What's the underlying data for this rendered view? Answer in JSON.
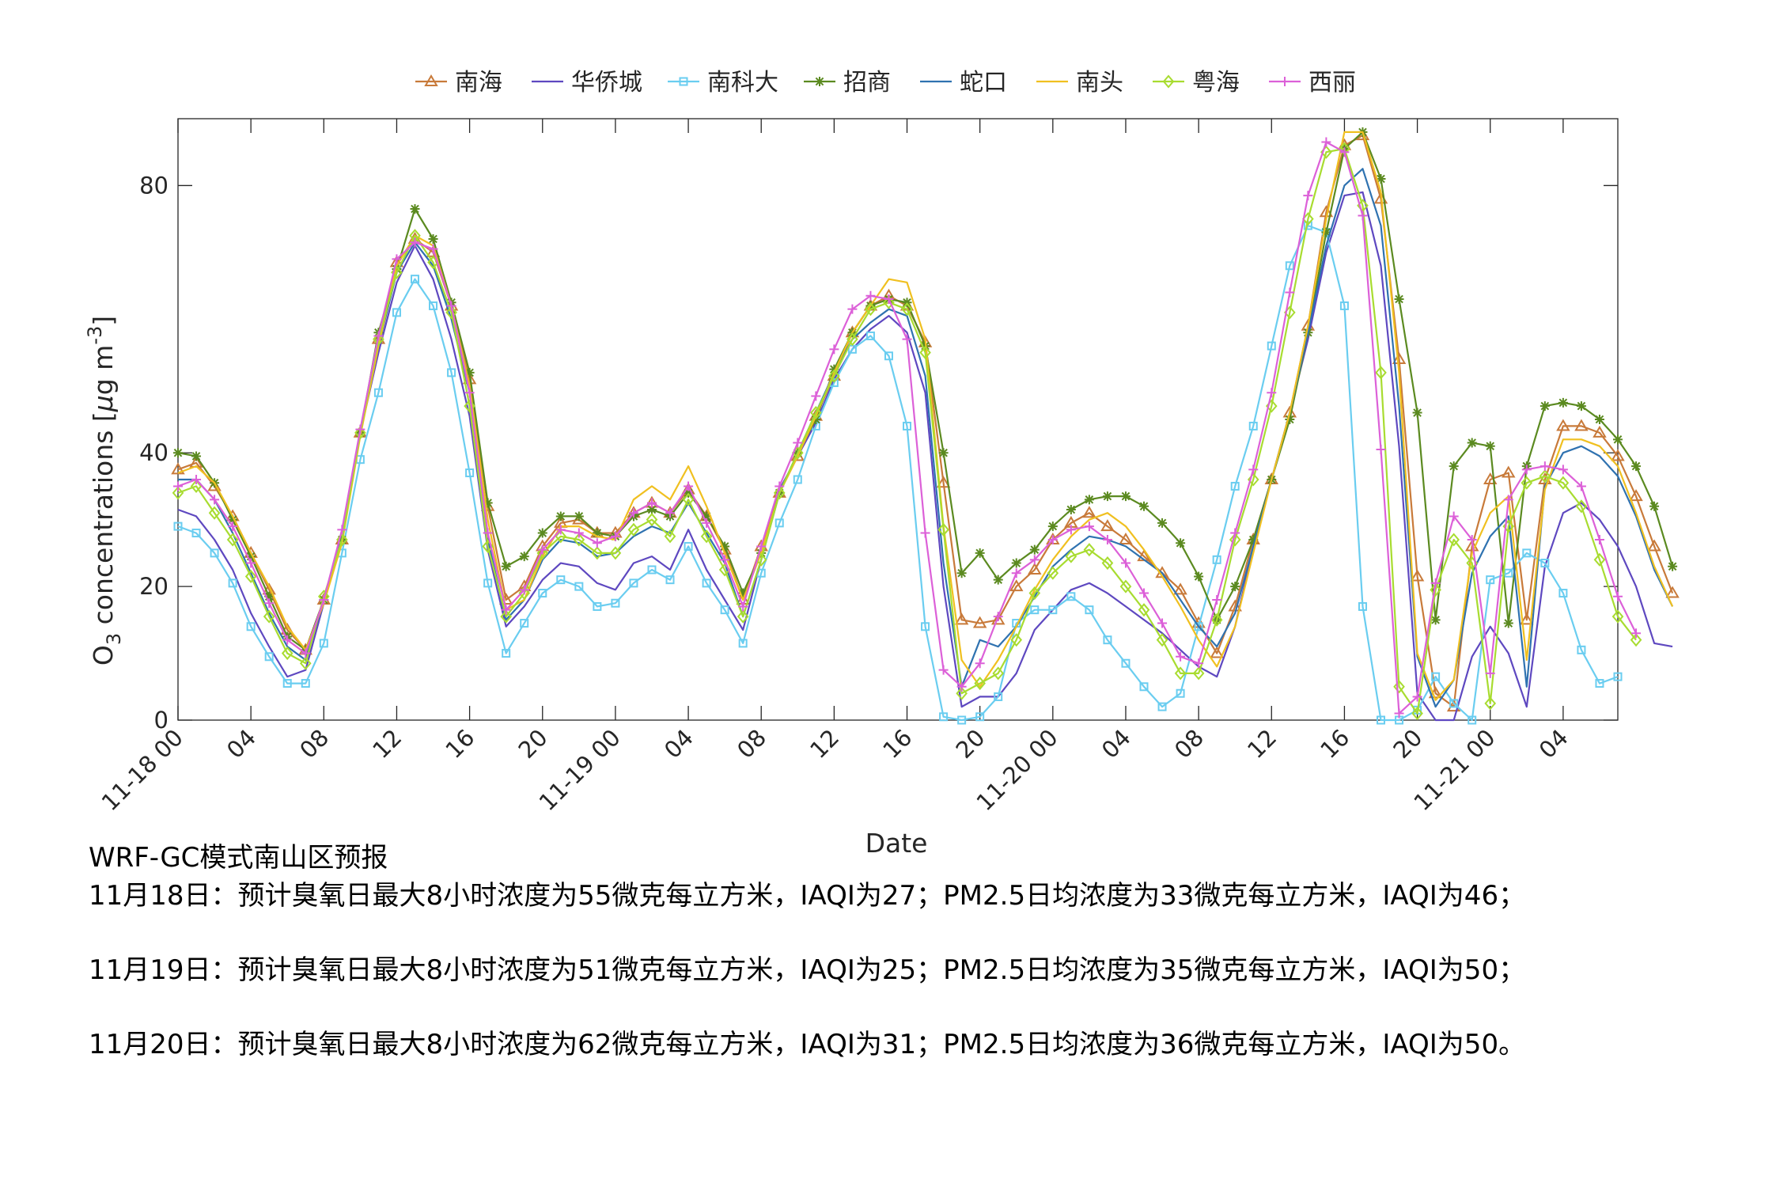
{
  "chart_data": {
    "type": "line",
    "xlabel": "Date",
    "ylabel_prefix": "O",
    "ylabel_sub": "3",
    "ylabel_main": " concentrations [",
    "ylabel_mu": "μ",
    "ylabel_unit": "g m",
    "ylabel_sup": "-3",
    "ylabel_close": "]",
    "ylim": [
      0,
      90
    ],
    "xlim": [
      0,
      79
    ],
    "yticks": [
      0,
      20,
      40,
      80
    ],
    "xtick_hours": [
      0,
      4,
      8,
      12,
      16,
      20,
      24,
      28,
      32,
      36,
      40,
      44,
      48,
      52,
      56,
      60,
      64,
      68,
      72,
      76
    ],
    "xtick_labels": [
      "11-18 00",
      "04",
      "08",
      "12",
      "16",
      "20",
      "11-19 00",
      "04",
      "08",
      "12",
      "16",
      "20",
      "11-20 00",
      "04",
      "08",
      "12",
      "16",
      "20",
      "11-21 00",
      "04"
    ],
    "legend": "top",
    "series": [
      {
        "name": "南海",
        "color": "#C87A3A",
        "marker": "triangle",
        "values": [
          37.5,
          38.5,
          35,
          30.5,
          25,
          19.5,
          13.5,
          10.5,
          18,
          27,
          43,
          57,
          68.5,
          72,
          70,
          62,
          51,
          32,
          18,
          20,
          26,
          29.5,
          30,
          28,
          28,
          31,
          32.5,
          31,
          34.5,
          30.5,
          25.5,
          18,
          26,
          34,
          39.5,
          45.5,
          51.5,
          58,
          62,
          63.5,
          62,
          56.5,
          35.5,
          15,
          14.5,
          15,
          20,
          22.5,
          27,
          29.5,
          31,
          29,
          27,
          24.5,
          22,
          19.5,
          14.5,
          10,
          17,
          27,
          36,
          46,
          59,
          76,
          86,
          87.5,
          78,
          54,
          21.5,
          4,
          2,
          26,
          36,
          37,
          15,
          36,
          44,
          44,
          43,
          39.5,
          33.5,
          26,
          19
        ]
      },
      {
        "name": "华侨城",
        "color": "#5E48C0",
        "marker": "none",
        "values": [
          31.5,
          30.5,
          27,
          22.5,
          16,
          11,
          6.5,
          7.5,
          17.5,
          28,
          43,
          55,
          65.5,
          71,
          66,
          57,
          45.5,
          25.5,
          14,
          17,
          21,
          23.5,
          23,
          20.5,
          19.5,
          23.5,
          24.5,
          22.5,
          28.5,
          22.5,
          18,
          13.5,
          24,
          34.5,
          39.5,
          44.5,
          51,
          55.5,
          58.5,
          60.5,
          58,
          49,
          20,
          2,
          3.5,
          3.5,
          7,
          13.5,
          16.5,
          19.5,
          20.5,
          19,
          17,
          15,
          13,
          10.5,
          8,
          6.5,
          14,
          26,
          36,
          46,
          57,
          70,
          78.5,
          79,
          68,
          41,
          4,
          0,
          0,
          9.5,
          14,
          10,
          2,
          23,
          31,
          32.5,
          30,
          26,
          20,
          11.5,
          11
        ]
      },
      {
        "name": "南科大",
        "color": "#6ACDF0",
        "marker": "square",
        "values": [
          29,
          28,
          25,
          20.5,
          14,
          9.5,
          5.5,
          5.5,
          11.5,
          25,
          39,
          49,
          61,
          66,
          62,
          52,
          37,
          20.5,
          10,
          14.5,
          19,
          21,
          20,
          17,
          17.5,
          20.5,
          22.5,
          21,
          26,
          20.5,
          16.5,
          11.5,
          22,
          29.5,
          36,
          44,
          50.5,
          55.5,
          57.5,
          54.5,
          44,
          14,
          0.5,
          0,
          0.5,
          3.5,
          14.5,
          16.5,
          16.5,
          18.5,
          16.5,
          12,
          8.5,
          5,
          2,
          4,
          14,
          24,
          35,
          44,
          56,
          68,
          74,
          73,
          62,
          17,
          0,
          0,
          1.5,
          6.5,
          2.5,
          0,
          21,
          22,
          25,
          23.5,
          19,
          10.5,
          5.5,
          6.5
        ]
      },
      {
        "name": "招商",
        "color": "#5B8A20",
        "marker": "asterisk",
        "values": [
          40,
          39.5,
          35.5,
          30,
          24.5,
          18.5,
          12.5,
          10.5,
          18,
          27,
          43,
          58,
          67.5,
          76.5,
          72,
          62.5,
          52,
          32.5,
          23,
          24.5,
          28,
          30.5,
          30.5,
          28,
          27.5,
          30.5,
          31.5,
          30.5,
          34,
          30.5,
          26,
          19,
          25,
          34,
          40,
          45,
          52.5,
          58,
          62,
          63,
          62.5,
          56,
          40,
          22,
          25,
          21,
          23.5,
          25.5,
          29,
          31.5,
          33,
          33.5,
          33.5,
          32,
          29.5,
          26.5,
          21.5,
          15,
          20,
          27,
          36,
          45,
          58,
          73,
          85.5,
          88,
          81,
          63,
          46,
          15,
          38,
          41.5,
          41,
          14.5,
          38,
          47,
          47.5,
          47,
          45,
          42,
          38,
          32,
          23
        ]
      },
      {
        "name": "蛇口",
        "color": "#2F72B0",
        "marker": "none",
        "values": [
          36,
          36,
          33,
          28,
          22,
          16,
          11,
          9,
          18,
          27,
          43,
          56,
          67,
          71.5,
          68,
          60,
          49,
          27,
          15,
          18,
          24,
          27,
          26.5,
          24.5,
          25,
          27.5,
          29,
          28,
          32.5,
          28,
          23.5,
          15.5,
          24,
          34,
          40,
          46,
          52,
          57,
          59.5,
          61.5,
          60.5,
          51.5,
          23.5,
          5,
          12,
          11,
          14,
          18.5,
          23,
          25.5,
          27.5,
          27,
          26,
          24,
          22,
          18,
          14,
          11,
          16,
          26,
          36,
          46,
          58,
          71,
          80,
          82.5,
          74,
          47,
          9.5,
          2,
          6,
          22,
          27.5,
          30.5,
          5,
          35,
          40,
          41,
          39.5,
          36.5,
          30.5,
          22.5,
          17
        ]
      },
      {
        "name": "南头",
        "color": "#F0C020",
        "marker": "none",
        "values": [
          37,
          38,
          35.5,
          30.5,
          25,
          20,
          14,
          10.5,
          17.5,
          26.5,
          42.5,
          56,
          68,
          72.5,
          71,
          62,
          50,
          30,
          16.5,
          18,
          24.5,
          29,
          29,
          27.5,
          27,
          33,
          35,
          33,
          38,
          32,
          25,
          18,
          25,
          34,
          39.5,
          45.5,
          52,
          58,
          62,
          66,
          65.5,
          57,
          29,
          9,
          5,
          9,
          14,
          19.5,
          24,
          27.5,
          30,
          31,
          29,
          25.5,
          21.5,
          17,
          12,
          8,
          14,
          25,
          36,
          46,
          59,
          75,
          88,
          88,
          79,
          52,
          10,
          3,
          6,
          25,
          31,
          33.5,
          9,
          34.5,
          42,
          42,
          41,
          38,
          31,
          23,
          17
        ]
      },
      {
        "name": "粤海",
        "color": "#A8DC30",
        "marker": "diamond",
        "values": [
          34,
          35,
          31,
          27,
          21.5,
          15.5,
          10,
          8.5,
          18.5,
          27,
          43,
          57,
          67,
          72.5,
          68.5,
          61,
          47,
          26,
          15.5,
          19,
          25,
          27.5,
          27,
          25,
          25,
          28.5,
          30,
          27.5,
          33,
          27.5,
          22.5,
          15.5,
          24,
          34,
          40,
          46,
          51.5,
          57,
          61.5,
          62.5,
          61.5,
          55,
          28.5,
          4,
          5.5,
          7,
          12,
          19,
          22,
          24.5,
          25.5,
          23.5,
          20,
          16.5,
          12,
          7,
          7,
          15,
          27,
          36,
          47,
          61,
          75,
          85,
          85.5,
          77,
          52,
          5,
          1,
          19.5,
          27,
          23.5,
          2.5,
          29,
          35.5,
          36.5,
          35.5,
          32,
          24,
          15.5,
          12
        ]
      },
      {
        "name": "西丽",
        "color": "#DC60D8",
        "marker": "plus",
        "values": [
          35,
          36,
          33,
          29,
          23.5,
          17.5,
          12,
          10,
          18,
          28.5,
          43.5,
          57.5,
          69,
          71.5,
          70.5,
          62,
          49,
          28,
          16.5,
          19.5,
          25.5,
          28.5,
          28,
          26.5,
          27.5,
          31,
          32.5,
          31,
          35,
          29.5,
          24,
          17,
          26,
          35,
          41.5,
          48.5,
          55.5,
          61.5,
          63.5,
          63,
          57,
          28,
          7.5,
          5,
          8.5,
          15.5,
          22,
          24,
          27,
          28.5,
          29,
          27,
          23.5,
          19,
          14.5,
          9.5,
          8.5,
          18,
          28,
          37.5,
          49,
          64,
          78.5,
          86.5,
          85,
          75.5,
          40.5,
          1,
          3.5,
          20.5,
          30.5,
          27,
          7,
          33,
          37.5,
          38,
          37.5,
          35,
          27,
          18.5,
          13
        ]
      }
    ]
  },
  "caption": {
    "title": "WRF-GC模式南山区预报",
    "lines": [
      "11月18日：预计臭氧日最大8小时浓度为55微克每立方米，IAQI为27；PM2.5日均浓度为33微克每立方米，IAQI为46；",
      "11月19日：预计臭氧日最大8小时浓度为51微克每立方米，IAQI为25；PM2.5日均浓度为35微克每立方米，IAQI为50；",
      "11月20日：预计臭氧日最大8小时浓度为62微克每立方米，IAQI为31；PM2.5日均浓度为36微克每立方米，IAQI为50。"
    ]
  }
}
